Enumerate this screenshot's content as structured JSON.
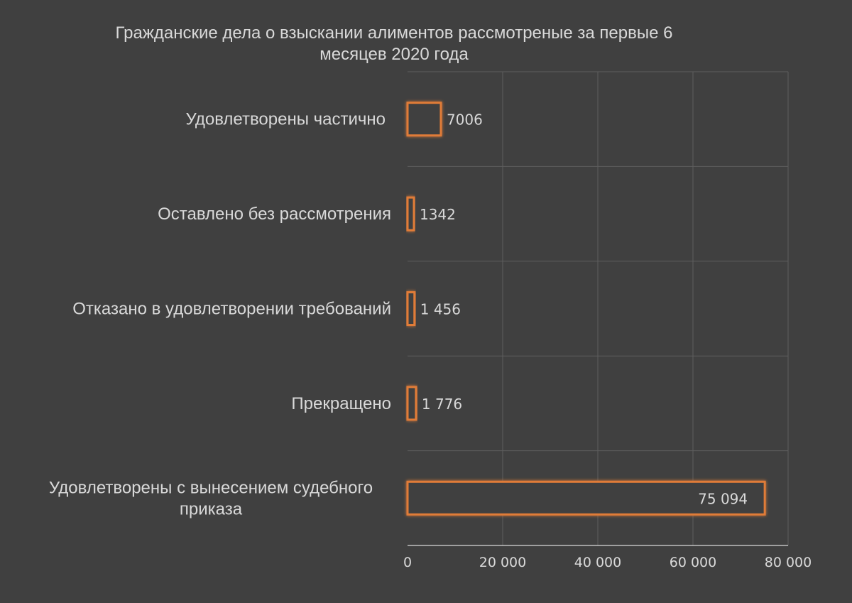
{
  "chart_data": {
    "type": "bar",
    "orientation": "horizontal",
    "title": "Гражданские дела о взыскании алиментов рассмотреные за первые 6 месяцев 2020 года",
    "title_lines": [
      "Гражданские дела о взыскании алиментов рассмотреные за первые 6",
      "месяцев 2020 года"
    ],
    "categories": [
      {
        "label_lines": [
          "Удовлетворены частично"
        ],
        "value": 7006,
        "data_label": "7006"
      },
      {
        "label_lines": [
          "Оставлено без рассмотрения"
        ],
        "value": 1342,
        "data_label": "1342"
      },
      {
        "label_lines": [
          "Отказано в удовлетворении требований"
        ],
        "value": 1456,
        "data_label": "1 456"
      },
      {
        "label_lines": [
          "Прекращено"
        ],
        "value": 1776,
        "data_label": "1 776"
      },
      {
        "label_lines": [
          "Удовлетворены с вынесением судебного",
          "приказа"
        ],
        "value": 75094,
        "data_label": "75 094"
      }
    ],
    "xlim": [
      0,
      80000
    ],
    "ticks": [
      0,
      20000,
      40000,
      60000,
      80000
    ],
    "tick_labels": [
      "0",
      "20 000",
      "40 000",
      "60 000",
      "80 000"
    ],
    "grid": true,
    "legend": "none"
  },
  "colors": {
    "background": "#404040",
    "bar_fill": "#404040",
    "bar_border": "#e07b39",
    "bar_glow": "#c55a11",
    "grid": "#5e5e5e",
    "axis": "#d9d9d9",
    "text": "#d9d9d9"
  }
}
